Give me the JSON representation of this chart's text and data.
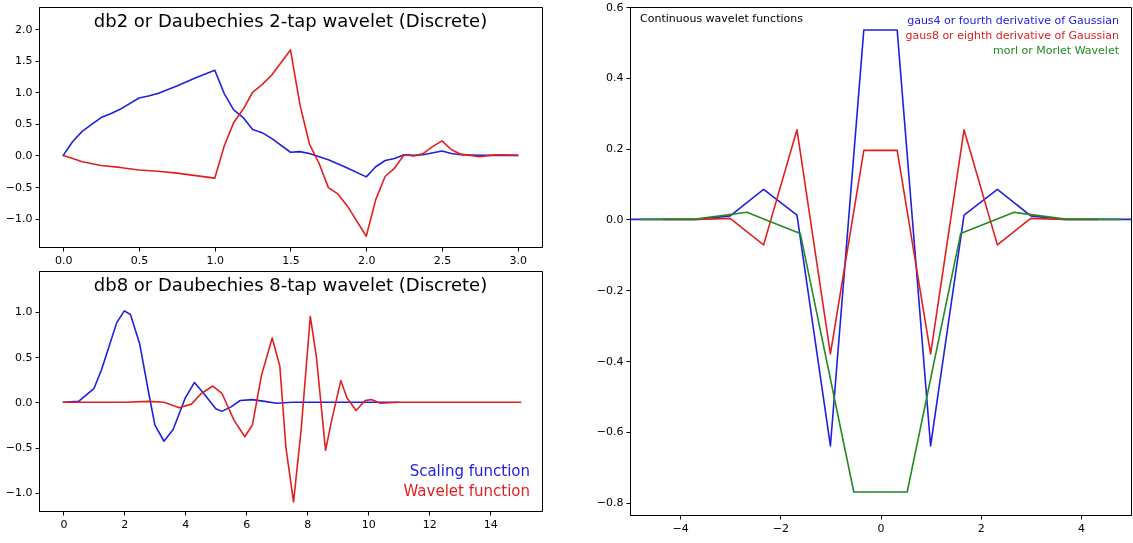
{
  "chart_data": [
    {
      "type": "line",
      "title": "db2 or Daubechies 2-tap wavelet (Discrete)",
      "xlim": [
        -0.16,
        3.16
      ],
      "ylim": [
        -1.45,
        2.35
      ],
      "xticks": [
        {
          "value": 0,
          "label": "0.0"
        },
        0.5,
        {
          "value": 1,
          "label": "1.0"
        },
        1.5,
        {
          "value": 2,
          "label": "2.0"
        },
        2.5,
        {
          "value": 3,
          "label": "3.0"
        }
      ],
      "yticks": [
        {
          "value": -1,
          "label": "−1.0"
        },
        {
          "value": -0.5,
          "label": "−0.5"
        },
        {
          "value": 0,
          "label": "0.0"
        },
        0.5,
        {
          "value": 1,
          "label": "1.0"
        },
        1.5,
        {
          "value": 2,
          "label": "2.0"
        }
      ],
      "series": [
        {
          "color": "#2020e0",
          "x": [
            0,
            0.0625,
            0.125,
            0.1875,
            0.25,
            0.3125,
            0.375,
            0.5,
            0.5625,
            0.625,
            0.75,
            0.875,
            1.0,
            1.0625,
            1.125,
            1.1875,
            1.25,
            1.3125,
            1.375,
            1.5,
            1.5625,
            1.625,
            1.75,
            1.875,
            2.0,
            2.0625,
            2.125,
            2.1875,
            2.25,
            2.3125,
            2.375,
            2.5,
            2.5625,
            2.625,
            2.75,
            2.875,
            3.0
          ],
          "values": [
            0,
            0.22,
            0.38,
            0.49,
            0.6,
            0.66,
            0.73,
            0.91,
            0.94,
            0.98,
            1.1,
            1.23,
            1.35,
            0.98,
            0.72,
            0.6,
            0.41,
            0.36,
            0.27,
            0.05,
            0.06,
            0.03,
            -0.07,
            -0.2,
            -0.34,
            -0.18,
            -0.08,
            -0.05,
            0.01,
            0.0,
            0.01,
            0.07,
            0.03,
            0.01,
            0.0,
            0.0,
            0.0
          ]
        },
        {
          "color": "#e02020",
          "x": [
            0,
            0.0625,
            0.125,
            0.25,
            0.375,
            0.5,
            0.625,
            0.75,
            0.875,
            1.0,
            1.0625,
            1.125,
            1.1875,
            1.25,
            1.3125,
            1.375,
            1.5,
            1.5625,
            1.625,
            1.6875,
            1.75,
            1.8125,
            1.875,
            2.0,
            2.0625,
            2.125,
            2.1875,
            2.25,
            2.3125,
            2.375,
            2.4375,
            2.5,
            2.5625,
            2.625,
            2.75,
            2.8125,
            2.875,
            3.0
          ],
          "values": [
            0,
            -0.05,
            -0.1,
            -0.16,
            -0.19,
            -0.23,
            -0.25,
            -0.28,
            -0.32,
            -0.36,
            0.15,
            0.52,
            0.73,
            1.0,
            1.12,
            1.27,
            1.67,
            0.8,
            0.18,
            -0.12,
            -0.51,
            -0.61,
            -0.8,
            -1.28,
            -0.7,
            -0.33,
            -0.2,
            0.01,
            -0.01,
            0.03,
            0.14,
            0.23,
            0.09,
            0.02,
            -0.02,
            0.0,
            0.01,
            0.0
          ]
        }
      ]
    },
    {
      "type": "line",
      "title": "db8 or Daubechies 8-tap wavelet (Discrete)",
      "xlim": [
        -0.8,
        15.7
      ],
      "ylim": [
        -1.2,
        1.45
      ],
      "legend": "bottom right",
      "xticks": [
        0,
        2,
        4,
        6,
        8,
        10,
        12,
        14
      ],
      "yticks": [
        {
          "value": -1,
          "label": "−1.0"
        },
        {
          "value": -0.5,
          "label": "−0.5"
        },
        {
          "value": 0,
          "label": "0.0"
        },
        0.5,
        {
          "value": 1,
          "label": "1.0"
        }
      ],
      "series": [
        {
          "name": "Scaling function",
          "color": "#2020e0",
          "x": [
            0,
            0.5,
            1,
            1.25,
            1.5,
            1.75,
            2,
            2.2,
            2.5,
            2.8,
            3,
            3.3,
            3.6,
            4,
            4.3,
            4.6,
            5,
            5.2,
            5.5,
            5.8,
            6.2,
            6.6,
            7,
            7.5,
            8,
            9,
            10,
            11
          ],
          "values": [
            0,
            0.01,
            0.15,
            0.36,
            0.62,
            0.88,
            1.01,
            0.97,
            0.65,
            0.1,
            -0.25,
            -0.43,
            -0.3,
            0.05,
            0.22,
            0.1,
            -0.07,
            -0.1,
            -0.05,
            0.02,
            0.03,
            0.01,
            -0.01,
            0,
            0,
            0,
            0,
            0
          ]
        },
        {
          "name": "Wavelet function",
          "color": "#e02020",
          "x": [
            0,
            2,
            2.8,
            3.3,
            3.8,
            4.2,
            4.5,
            4.9,
            5.2,
            5.6,
            5.95,
            6.2,
            6.5,
            6.85,
            7.1,
            7.3,
            7.55,
            7.8,
            8.1,
            8.3,
            8.6,
            8.8,
            9.1,
            9.3,
            9.6,
            9.9,
            10.1,
            10.4,
            11,
            12,
            13,
            14,
            15
          ],
          "values": [
            0,
            0.0,
            0.01,
            0,
            -0.06,
            -0.02,
            0.09,
            0.18,
            0.1,
            -0.2,
            -0.38,
            -0.25,
            0.3,
            0.71,
            0.4,
            -0.5,
            -1.1,
            -0.3,
            0.95,
            0.5,
            -0.53,
            -0.2,
            0.24,
            0.05,
            -0.09,
            0.02,
            0.03,
            -0.01,
            0,
            0,
            0,
            0,
            0
          ]
        }
      ]
    },
    {
      "type": "line",
      "title": "Continuous wavelet functions",
      "xlim": [
        -5,
        5
      ],
      "ylim": [
        -0.835,
        0.6
      ],
      "legend": "top right",
      "xticks": [
        {
          "value": -4,
          "label": "−4"
        },
        {
          "value": -2,
          "label": "−2"
        },
        0,
        2,
        4
      ],
      "yticks": [
        {
          "value": -0.8,
          "label": "−0.8"
        },
        {
          "value": -0.6,
          "label": "−0.6"
        },
        {
          "value": -0.4,
          "label": "−0.4"
        },
        {
          "value": -0.2,
          "label": "−0.2"
        },
        {
          "value": 0,
          "label": "0.0"
        },
        0.2,
        0.4,
        0.6
      ],
      "series": [
        {
          "name": "gaus4 or fourth derivative of Gaussian",
          "color": "#2020e0",
          "x": [
            -5,
            -4.333,
            -3.667,
            -3,
            -2.333,
            -1.667,
            -1,
            -0.333,
            0.333,
            1,
            1.667,
            2.333,
            3,
            3.667,
            4.333,
            5
          ],
          "values": [
            0,
            0,
            0,
            0.01,
            0.085,
            0.012,
            -0.64,
            0.535,
            0.535,
            -0.64,
            0.012,
            0.085,
            0.01,
            0,
            0,
            0
          ]
        },
        {
          "name": "gaus8 or eighth derivative of Gaussian",
          "color": "#e02020",
          "x": [
            -4.333,
            -3.667,
            -3,
            -2.333,
            -1.667,
            -1,
            -0.333,
            0.333,
            1,
            1.667,
            2.333,
            3,
            3.667,
            4.333
          ],
          "values": [
            0,
            0,
            0.003,
            -0.072,
            0.253,
            -0.38,
            0.195,
            0.195,
            -0.38,
            0.253,
            -0.072,
            0.003,
            0,
            0
          ]
        },
        {
          "name": "morl or Morlet Wavelet",
          "color": "#228b22",
          "x": [
            -4.8,
            -3.733,
            -2.667,
            -1.6,
            -0.533,
            0.533,
            1.6,
            2.667,
            3.733,
            4.8
          ],
          "values": [
            0,
            0,
            0.02,
            -0.04,
            -0.77,
            -0.77,
            -0.04,
            0.02,
            0,
            0
          ]
        }
      ]
    }
  ]
}
